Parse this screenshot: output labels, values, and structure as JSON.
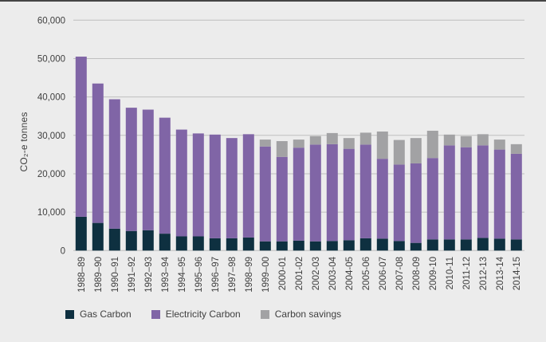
{
  "chart_data": {
    "type": "bar",
    "stacked": true,
    "title": "",
    "xlabel": "",
    "ylabel": "CO₂-e tonnes",
    "ylim": [
      0,
      60000
    ],
    "y_tick_labels": [
      "0",
      "10,000",
      "20,000",
      "30,000",
      "40,000",
      "50,000",
      "60,000"
    ],
    "y_tick_values": [
      0,
      10000,
      20000,
      30000,
      40000,
      50000,
      60000
    ],
    "grid": true,
    "legend_position": "bottom",
    "categories": [
      "1988–89",
      "1989–90",
      "1990–91",
      "1991–92",
      "1992–93",
      "1993–94",
      "1994–95",
      "1995–96",
      "1996–97",
      "1997–98",
      "1998–99",
      "1999–00",
      "2000-01",
      "2001-02",
      "2002-03",
      "2003-04",
      "2004-05",
      "2005-06",
      "2006-07",
      "2007-08",
      "2008-09",
      "2009-10",
      "2010-11",
      "2011-12",
      "2012-13",
      "2013-14",
      "2014-15"
    ],
    "series": [
      {
        "name": "Gas Carbon",
        "color": "#0e3040",
        "values": [
          8800,
          7200,
          5700,
          5100,
          5300,
          4400,
          3700,
          3700,
          3200,
          3200,
          3400,
          2400,
          2400,
          2600,
          2400,
          2500,
          2700,
          3200,
          3100,
          2500,
          2000,
          2900,
          2900,
          2900,
          3300,
          3100,
          2900
        ]
      },
      {
        "name": "Electricity Carbon",
        "color": "#8065a6",
        "values": [
          41700,
          36300,
          33700,
          32100,
          31400,
          30200,
          27800,
          26800,
          27000,
          26100,
          26900,
          24700,
          22000,
          24200,
          25200,
          25200,
          23800,
          24400,
          20800,
          19900,
          20700,
          21200,
          24500,
          24000,
          24100,
          23200,
          22300
        ]
      },
      {
        "name": "Carbon savings",
        "color": "#a2a2a4",
        "values": [
          0,
          0,
          0,
          0,
          0,
          0,
          0,
          0,
          0,
          0,
          0,
          1800,
          4100,
          2100,
          2200,
          2900,
          2800,
          3100,
          7100,
          6400,
          6600,
          7100,
          2800,
          2900,
          2900,
          2600,
          2500
        ]
      }
    ]
  },
  "colors": {
    "background": "#ececec",
    "gridline": "#bfbfbf",
    "text": "#3f3f3f",
    "top_rule": "#454545"
  }
}
